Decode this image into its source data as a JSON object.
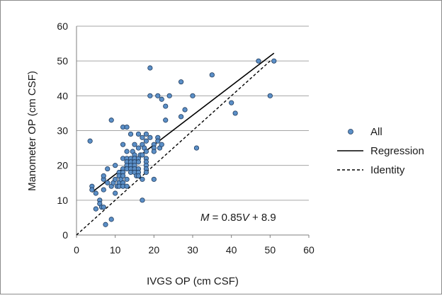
{
  "chart_data": {
    "type": "scatter",
    "xlabel": "IVGS OP (cm CSF)",
    "ylabel": "Manometer OP (cm CSF)",
    "xlim": [
      0,
      60
    ],
    "ylim": [
      0,
      60
    ],
    "xticks": [
      0,
      10,
      20,
      30,
      40,
      50,
      60
    ],
    "yticks": [
      0,
      10,
      20,
      30,
      40,
      50,
      60
    ],
    "grid": "horizontal",
    "legend_position": "right",
    "legend": [
      {
        "label": "All",
        "style": "marker"
      },
      {
        "label": "Regression",
        "style": "solid"
      },
      {
        "label": "Identity",
        "style": "dashed"
      }
    ],
    "annotation": {
      "M": "M",
      "eq": " = 0.85",
      "V": "V",
      "rest": " + 8.9"
    },
    "marker_color": "#5b8fc7",
    "marker_edge": "#1f3a5c",
    "regression": {
      "slope": 0.85,
      "intercept": 8.9,
      "x_range": [
        4,
        51
      ]
    },
    "identity": {
      "x_range": [
        0,
        50
      ]
    },
    "series": [
      {
        "name": "All",
        "points": [
          [
            3.5,
            27
          ],
          [
            4,
            14
          ],
          [
            4,
            13
          ],
          [
            5,
            12
          ],
          [
            5,
            7.5
          ],
          [
            6,
            10
          ],
          [
            6,
            9
          ],
          [
            6.5,
            8
          ],
          [
            7,
            8
          ],
          [
            7,
            16
          ],
          [
            7,
            17
          ],
          [
            7,
            13
          ],
          [
            7.5,
            3
          ],
          [
            8,
            15
          ],
          [
            8,
            19
          ],
          [
            9,
            33
          ],
          [
            9,
            4.5
          ],
          [
            9,
            14
          ],
          [
            9.5,
            15
          ],
          [
            10,
            16
          ],
          [
            10,
            12
          ],
          [
            10,
            20
          ],
          [
            10.5,
            14
          ],
          [
            11,
            18
          ],
          [
            11,
            17
          ],
          [
            11,
            15
          ],
          [
            11,
            14
          ],
          [
            11.5,
            16
          ],
          [
            12,
            31
          ],
          [
            12,
            26
          ],
          [
            12,
            22
          ],
          [
            12,
            19
          ],
          [
            12,
            18
          ],
          [
            12,
            17
          ],
          [
            12,
            15
          ],
          [
            12,
            14
          ],
          [
            13,
            31
          ],
          [
            13,
            24
          ],
          [
            13,
            22
          ],
          [
            13,
            21
          ],
          [
            13,
            20
          ],
          [
            13,
            19
          ],
          [
            13,
            16
          ],
          [
            13,
            14
          ],
          [
            14,
            29
          ],
          [
            14,
            22
          ],
          [
            14,
            21
          ],
          [
            14,
            20
          ],
          [
            14,
            19
          ],
          [
            14,
            18
          ],
          [
            14.5,
            24
          ],
          [
            15,
            26
          ],
          [
            15,
            23
          ],
          [
            15,
            22
          ],
          [
            15,
            21
          ],
          [
            15,
            20
          ],
          [
            15,
            19
          ],
          [
            15,
            18
          ],
          [
            15.5,
            17
          ],
          [
            16,
            29
          ],
          [
            16,
            25
          ],
          [
            16,
            22
          ],
          [
            16,
            21
          ],
          [
            16,
            19
          ],
          [
            16,
            18
          ],
          [
            16,
            17
          ],
          [
            16.5,
            23
          ],
          [
            17,
            28
          ],
          [
            17,
            26
          ],
          [
            17,
            23
          ],
          [
            17,
            16
          ],
          [
            17,
            10
          ],
          [
            17.5,
            25
          ],
          [
            18,
            29
          ],
          [
            18,
            27
          ],
          [
            18,
            24
          ],
          [
            18,
            22
          ],
          [
            18,
            21
          ],
          [
            18,
            20
          ],
          [
            18,
            19
          ],
          [
            18,
            18
          ],
          [
            19,
            48
          ],
          [
            19,
            40
          ],
          [
            19,
            28
          ],
          [
            20,
            26
          ],
          [
            20,
            25
          ],
          [
            20,
            24
          ],
          [
            20,
            16
          ],
          [
            21,
            40
          ],
          [
            21,
            28
          ],
          [
            21,
            27
          ],
          [
            21.5,
            25
          ],
          [
            22,
            39
          ],
          [
            22,
            26
          ],
          [
            23,
            37
          ],
          [
            23,
            33
          ],
          [
            24,
            40
          ],
          [
            27,
            44
          ],
          [
            27,
            34
          ],
          [
            28,
            36
          ],
          [
            30,
            40
          ],
          [
            31,
            25
          ],
          [
            35,
            46
          ],
          [
            40,
            38
          ],
          [
            41,
            35
          ],
          [
            47,
            50
          ],
          [
            50,
            40
          ],
          [
            51,
            50
          ]
        ]
      }
    ]
  }
}
